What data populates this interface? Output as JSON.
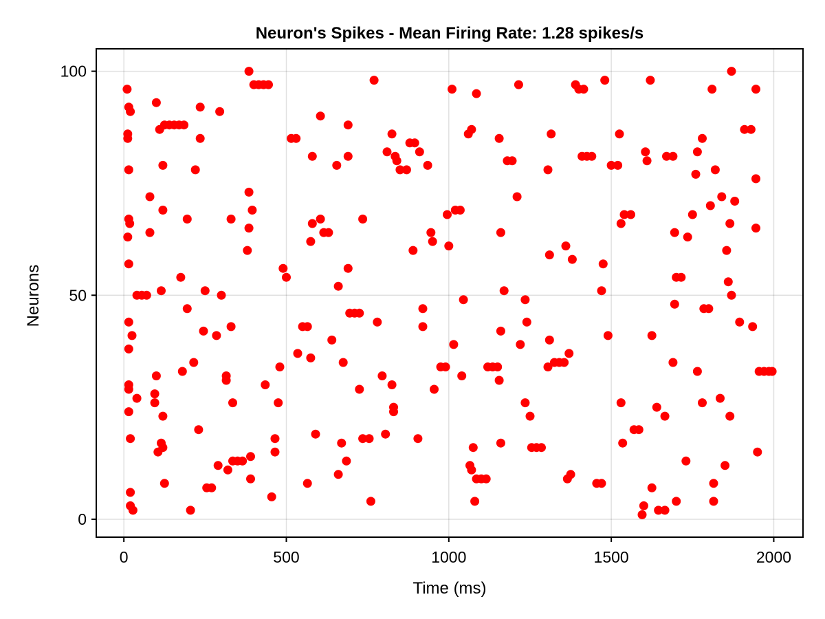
{
  "chart_data": {
    "type": "scatter",
    "title": "Neuron's Spikes - Mean Firing Rate: 1.28 spikes/s",
    "xlabel": "Time (ms)",
    "ylabel": "Neurons",
    "xlim": [
      -85,
      2090
    ],
    "ylim": [
      -4,
      105
    ],
    "xticks": [
      0,
      500,
      1000,
      1500,
      2000
    ],
    "yticks": [
      0,
      50,
      100
    ],
    "grid": true,
    "legend": "none",
    "marker_color": "#ff0000",
    "points": [
      [
        10,
        96
      ],
      [
        15,
        92
      ],
      [
        20,
        91
      ],
      [
        12,
        86
      ],
      [
        12,
        85
      ],
      [
        15,
        78
      ],
      [
        15,
        67
      ],
      [
        18,
        66
      ],
      [
        12,
        63
      ],
      [
        15,
        57
      ],
      [
        15,
        44
      ],
      [
        15,
        38
      ],
      [
        25,
        41
      ],
      [
        15,
        30
      ],
      [
        15,
        29
      ],
      [
        15,
        24
      ],
      [
        20,
        18
      ],
      [
        20,
        6
      ],
      [
        20,
        3
      ],
      [
        28,
        2
      ],
      [
        40,
        27
      ],
      [
        40,
        50
      ],
      [
        55,
        50
      ],
      [
        70,
        50
      ],
      [
        80,
        72
      ],
      [
        80,
        64
      ],
      [
        95,
        28
      ],
      [
        95,
        26
      ],
      [
        100,
        32
      ],
      [
        100,
        93
      ],
      [
        105,
        15
      ],
      [
        110,
        87
      ],
      [
        115,
        17
      ],
      [
        115,
        51
      ],
      [
        120,
        79
      ],
      [
        120,
        69
      ],
      [
        120,
        23
      ],
      [
        120,
        16
      ],
      [
        125,
        8
      ],
      [
        125,
        88
      ],
      [
        140,
        88
      ],
      [
        155,
        88
      ],
      [
        170,
        88
      ],
      [
        185,
        88
      ],
      [
        175,
        54
      ],
      [
        180,
        33
      ],
      [
        195,
        67
      ],
      [
        195,
        47
      ],
      [
        205,
        2
      ],
      [
        215,
        35
      ],
      [
        220,
        78
      ],
      [
        230,
        20
      ],
      [
        235,
        92
      ],
      [
        235,
        85
      ],
      [
        245,
        42
      ],
      [
        250,
        51
      ],
      [
        255,
        7
      ],
      [
        270,
        7
      ],
      [
        285,
        41
      ],
      [
        290,
        12
      ],
      [
        295,
        91
      ],
      [
        300,
        50
      ],
      [
        315,
        32
      ],
      [
        320,
        11
      ],
      [
        315,
        31
      ],
      [
        330,
        43
      ],
      [
        330,
        67
      ],
      [
        335,
        26
      ],
      [
        335,
        13
      ],
      [
        350,
        13
      ],
      [
        365,
        13
      ],
      [
        385,
        100
      ],
      [
        385,
        73
      ],
      [
        385,
        65
      ],
      [
        380,
        60
      ],
      [
        390,
        14
      ],
      [
        390,
        9
      ],
      [
        395,
        69
      ],
      [
        400,
        97
      ],
      [
        415,
        97
      ],
      [
        430,
        97
      ],
      [
        445,
        97
      ],
      [
        435,
        30
      ],
      [
        455,
        5
      ],
      [
        465,
        18
      ],
      [
        465,
        15
      ],
      [
        475,
        26
      ],
      [
        480,
        34
      ],
      [
        490,
        56
      ],
      [
        500,
        54
      ],
      [
        515,
        85
      ],
      [
        530,
        85
      ],
      [
        535,
        37
      ],
      [
        550,
        43
      ],
      [
        565,
        43
      ],
      [
        565,
        8
      ],
      [
        575,
        36
      ],
      [
        575,
        62
      ],
      [
        580,
        66
      ],
      [
        580,
        81
      ],
      [
        590,
        19
      ],
      [
        605,
        90
      ],
      [
        605,
        67
      ],
      [
        615,
        64
      ],
      [
        630,
        64
      ],
      [
        640,
        40
      ],
      [
        655,
        79
      ],
      [
        660,
        52
      ],
      [
        660,
        10
      ],
      [
        670,
        17
      ],
      [
        675,
        35
      ],
      [
        685,
        13
      ],
      [
        690,
        56
      ],
      [
        690,
        88
      ],
      [
        690,
        81
      ],
      [
        695,
        46
      ],
      [
        710,
        46
      ],
      [
        725,
        46
      ],
      [
        725,
        29
      ],
      [
        735,
        67
      ],
      [
        735,
        18
      ],
      [
        755,
        18
      ],
      [
        760,
        4
      ],
      [
        770,
        98
      ],
      [
        780,
        44
      ],
      [
        795,
        32
      ],
      [
        805,
        19
      ],
      [
        810,
        82
      ],
      [
        825,
        86
      ],
      [
        825,
        30
      ],
      [
        830,
        25
      ],
      [
        830,
        24
      ],
      [
        835,
        81
      ],
      [
        840,
        80
      ],
      [
        850,
        78
      ],
      [
        870,
        78
      ],
      [
        880,
        84
      ],
      [
        890,
        60
      ],
      [
        895,
        84
      ],
      [
        905,
        18
      ],
      [
        910,
        82
      ],
      [
        920,
        47
      ],
      [
        920,
        43
      ],
      [
        935,
        79
      ],
      [
        945,
        64
      ],
      [
        950,
        62
      ],
      [
        955,
        29
      ],
      [
        975,
        34
      ],
      [
        990,
        34
      ],
      [
        995,
        68
      ],
      [
        1000,
        61
      ],
      [
        1010,
        96
      ],
      [
        1015,
        39
      ],
      [
        1020,
        69
      ],
      [
        1035,
        69
      ],
      [
        1040,
        32
      ],
      [
        1045,
        49
      ],
      [
        1060,
        86
      ],
      [
        1065,
        12
      ],
      [
        1070,
        87
      ],
      [
        1070,
        11
      ],
      [
        1075,
        16
      ],
      [
        1080,
        4
      ],
      [
        1085,
        95
      ],
      [
        1085,
        9
      ],
      [
        1100,
        9
      ],
      [
        1115,
        9
      ],
      [
        1120,
        34
      ],
      [
        1135,
        34
      ],
      [
        1150,
        34
      ],
      [
        1155,
        31
      ],
      [
        1155,
        85
      ],
      [
        1160,
        64
      ],
      [
        1160,
        42
      ],
      [
        1160,
        17
      ],
      [
        1170,
        51
      ],
      [
        1180,
        80
      ],
      [
        1195,
        80
      ],
      [
        1210,
        72
      ],
      [
        1215,
        97
      ],
      [
        1220,
        39
      ],
      [
        1235,
        26
      ],
      [
        1235,
        49
      ],
      [
        1240,
        44
      ],
      [
        1250,
        23
      ],
      [
        1255,
        16
      ],
      [
        1270,
        16
      ],
      [
        1285,
        16
      ],
      [
        1305,
        34
      ],
      [
        1305,
        78
      ],
      [
        1310,
        59
      ],
      [
        1310,
        40
      ],
      [
        1315,
        86
      ],
      [
        1325,
        35
      ],
      [
        1340,
        35
      ],
      [
        1355,
        35
      ],
      [
        1360,
        61
      ],
      [
        1365,
        9
      ],
      [
        1370,
        37
      ],
      [
        1375,
        10
      ],
      [
        1380,
        58
      ],
      [
        1390,
        97
      ],
      [
        1400,
        96
      ],
      [
        1410,
        81
      ],
      [
        1415,
        96
      ],
      [
        1425,
        81
      ],
      [
        1440,
        81
      ],
      [
        1455,
        8
      ],
      [
        1470,
        8
      ],
      [
        1470,
        51
      ],
      [
        1475,
        57
      ],
      [
        1480,
        98
      ],
      [
        1490,
        41
      ],
      [
        1500,
        79
      ],
      [
        1520,
        79
      ],
      [
        1525,
        86
      ],
      [
        1530,
        26
      ],
      [
        1530,
        66
      ],
      [
        1535,
        17
      ],
      [
        1540,
        68
      ],
      [
        1560,
        68
      ],
      [
        1570,
        20
      ],
      [
        1585,
        20
      ],
      [
        1595,
        1
      ],
      [
        1600,
        3
      ],
      [
        1605,
        82
      ],
      [
        1610,
        80
      ],
      [
        1620,
        98
      ],
      [
        1625,
        7
      ],
      [
        1625,
        41
      ],
      [
        1640,
        25
      ],
      [
        1645,
        2
      ],
      [
        1665,
        2
      ],
      [
        1665,
        23
      ],
      [
        1670,
        81
      ],
      [
        1690,
        81
      ],
      [
        1690,
        35
      ],
      [
        1695,
        48
      ],
      [
        1695,
        64
      ],
      [
        1700,
        4
      ],
      [
        1700,
        54
      ],
      [
        1715,
        54
      ],
      [
        1730,
        13
      ],
      [
        1735,
        63
      ],
      [
        1750,
        68
      ],
      [
        1760,
        77
      ],
      [
        1765,
        33
      ],
      [
        1765,
        82
      ],
      [
        1780,
        26
      ],
      [
        1780,
        85
      ],
      [
        1785,
        47
      ],
      [
        1800,
        47
      ],
      [
        1805,
        70
      ],
      [
        1810,
        96
      ],
      [
        1815,
        8
      ],
      [
        1815,
        4
      ],
      [
        1820,
        78
      ],
      [
        1835,
        27
      ],
      [
        1840,
        72
      ],
      [
        1850,
        12
      ],
      [
        1855,
        60
      ],
      [
        1860,
        53
      ],
      [
        1865,
        66
      ],
      [
        1865,
        23
      ],
      [
        1870,
        100
      ],
      [
        1870,
        50
      ],
      [
        1880,
        71
      ],
      [
        1895,
        44
      ],
      [
        1910,
        87
      ],
      [
        1930,
        87
      ],
      [
        1935,
        43
      ],
      [
        1945,
        96
      ],
      [
        1945,
        76
      ],
      [
        1945,
        65
      ],
      [
        1950,
        15
      ],
      [
        1955,
        33
      ],
      [
        1970,
        33
      ],
      [
        1985,
        33
      ],
      [
        1995,
        33
      ]
    ]
  }
}
